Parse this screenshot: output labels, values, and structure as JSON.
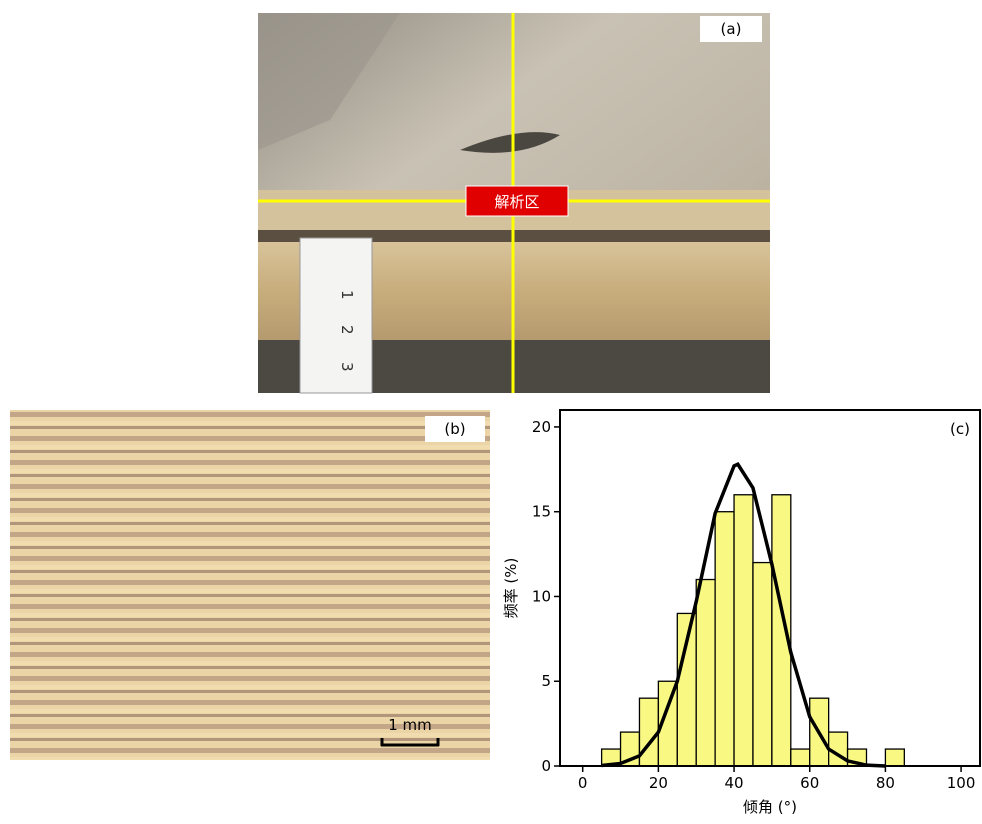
{
  "panel_a": {
    "label": "(a)",
    "annotation": "解析区",
    "ruler_labels": [
      "1",
      "2",
      "3"
    ]
  },
  "panel_b": {
    "label": "(b)",
    "scale_bar": "1 mm"
  },
  "chart_data": {
    "type": "histogram",
    "panel_label": "(c)",
    "x_label": "倾角 (°)",
    "y_label": "频率 (%)",
    "bins": [
      5,
      10,
      15,
      20,
      25,
      30,
      35,
      40,
      45,
      50,
      55,
      60,
      65,
      70,
      75,
      80,
      85
    ],
    "values": [
      1,
      2,
      4,
      5,
      9,
      11,
      15,
      16,
      12,
      16,
      1,
      4,
      2,
      1,
      0,
      1
    ],
    "color": "#f8f883",
    "fit": {
      "color": "#000000",
      "x": [
        5,
        10,
        15,
        20,
        25,
        30,
        35,
        40,
        41,
        45,
        50,
        55,
        60,
        65,
        70,
        75,
        80
      ],
      "values": [
        0.03,
        0.15,
        0.6,
        2.0,
        5.0,
        9.7,
        14.9,
        17.7,
        17.8,
        16.4,
        11.9,
        6.7,
        2.9,
        1.0,
        0.3,
        0.05,
        0
      ]
    },
    "xlim": [
      -6,
      105
    ],
    "ylim": [
      0,
      21
    ],
    "xticks": [
      0,
      20,
      40,
      60,
      80,
      100
    ],
    "yticks": [
      0,
      5,
      10,
      15,
      20
    ],
    "grid": false
  }
}
